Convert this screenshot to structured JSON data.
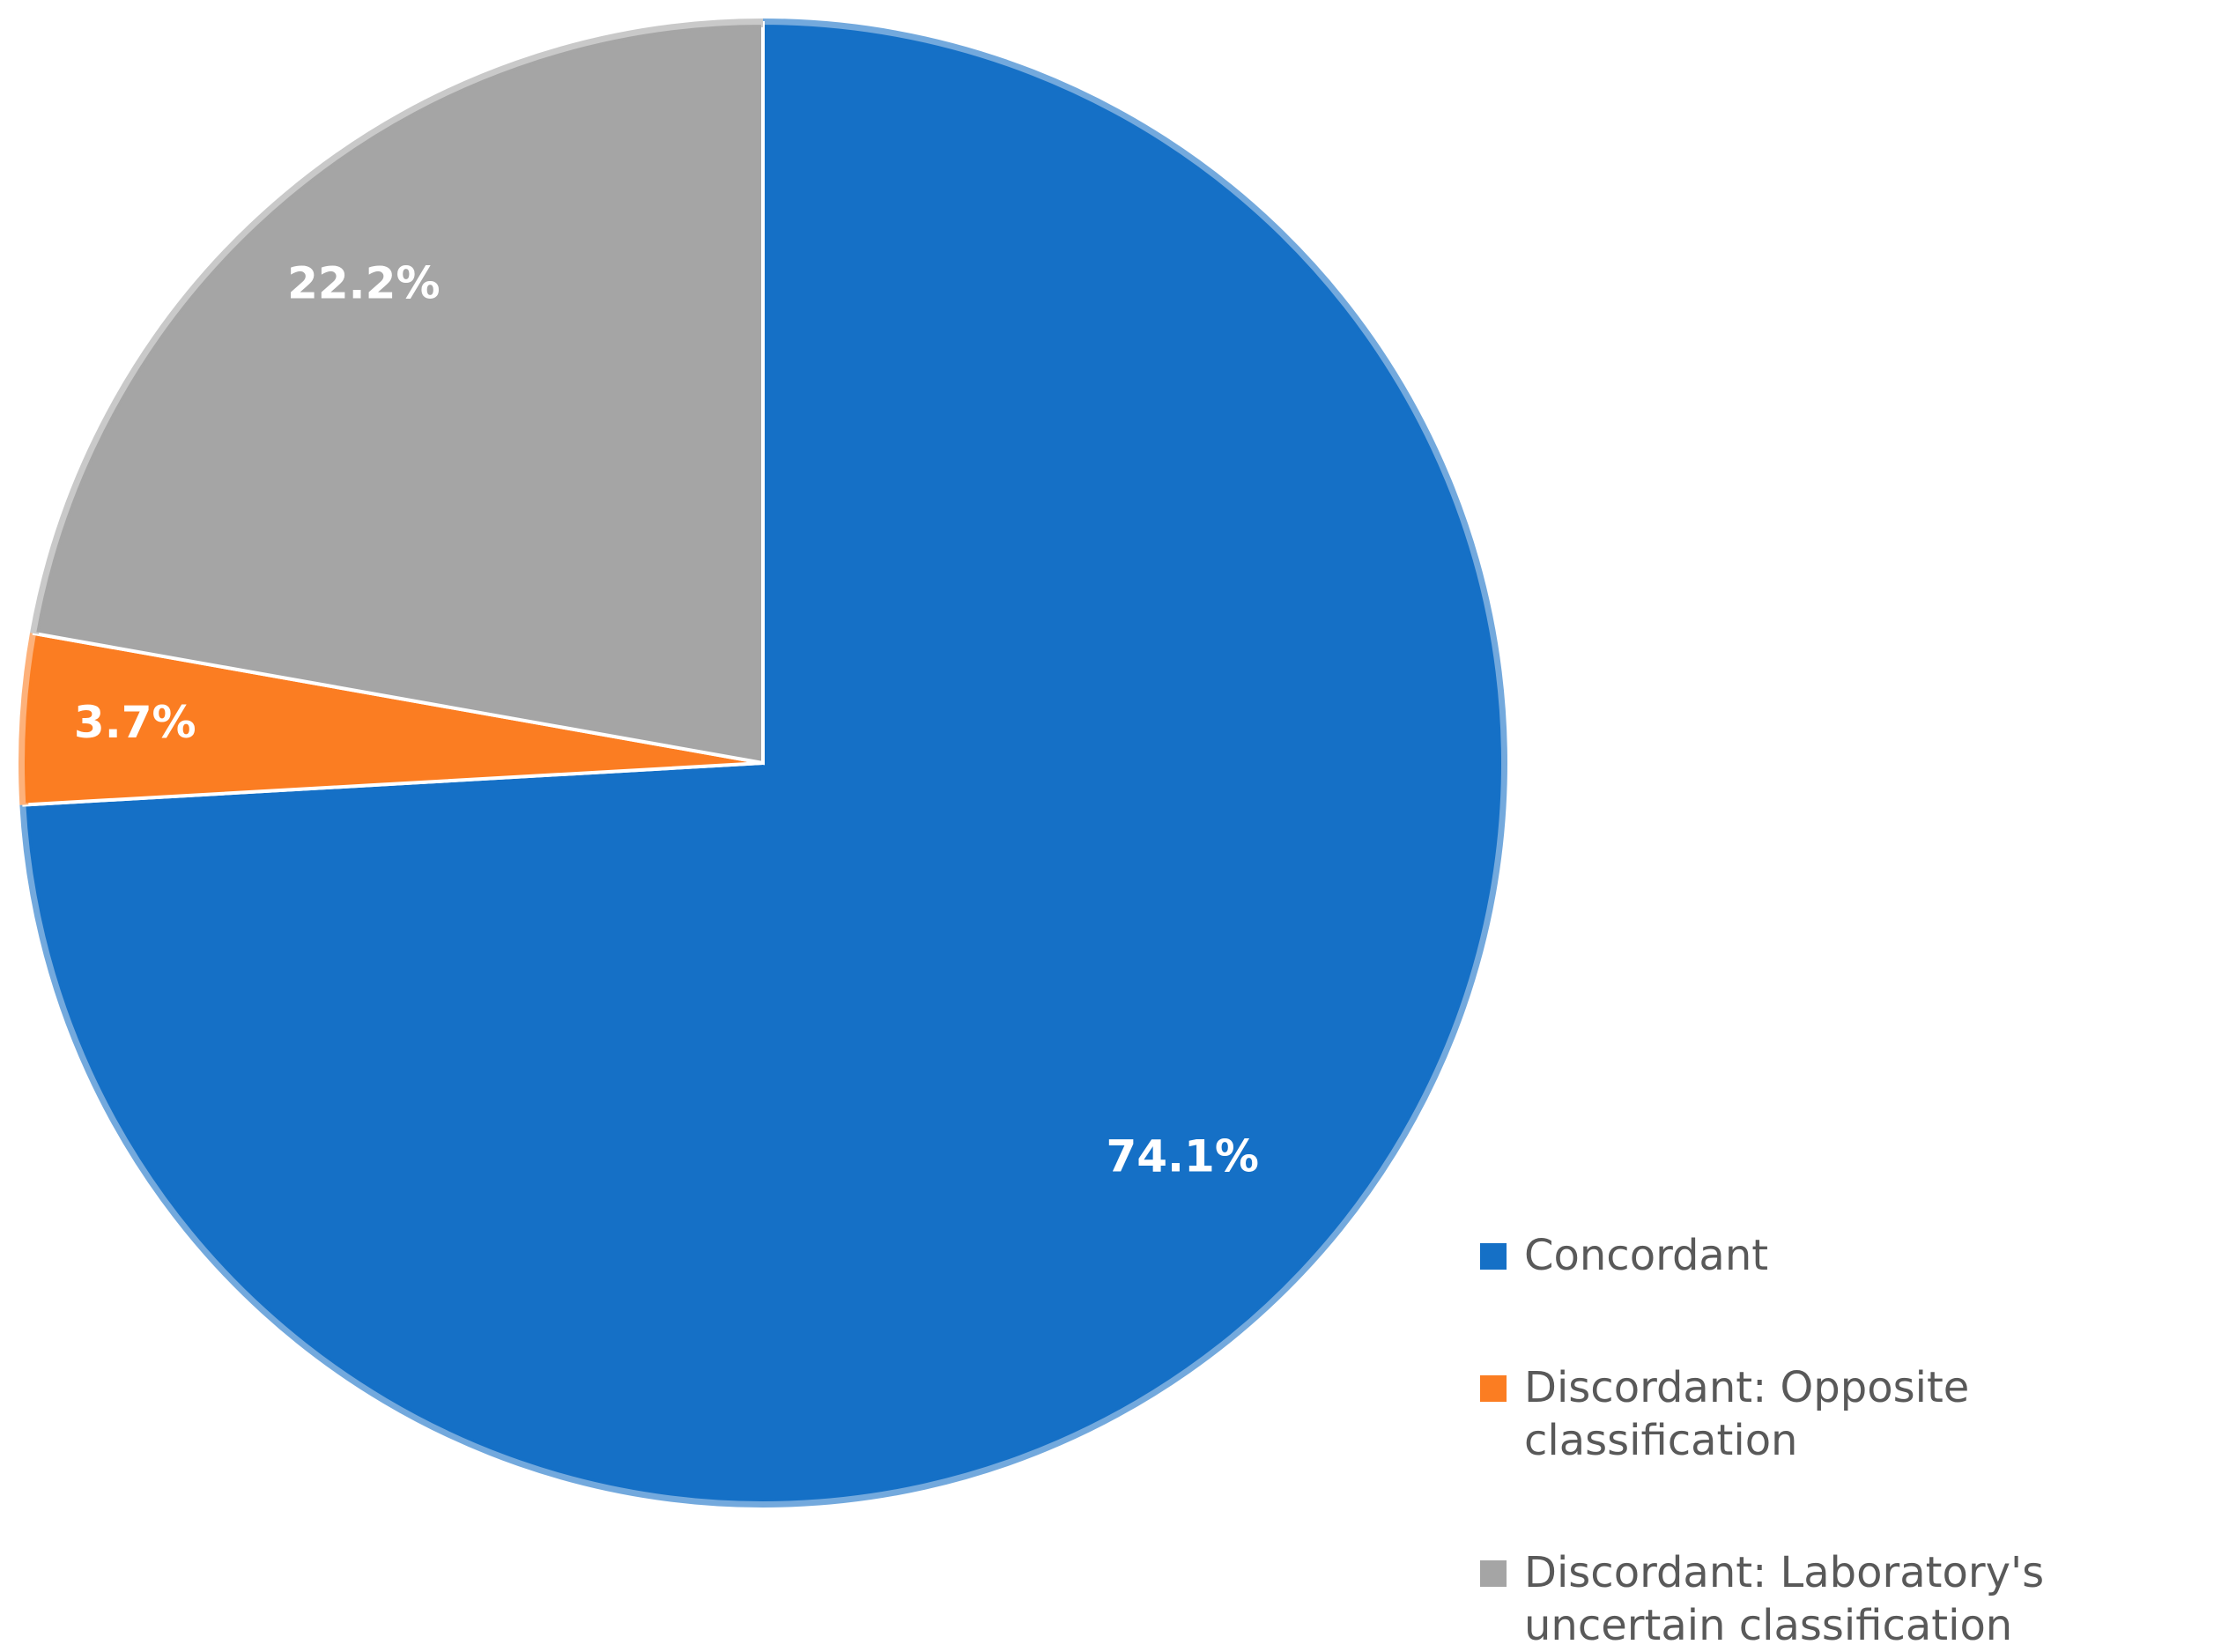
{
  "chart_data": {
    "type": "pie",
    "title": "",
    "start_angle_deg": 0,
    "direction": "clockwise",
    "slices": [
      {
        "name": "Concordant",
        "value": 74.1,
        "label": "74.1%",
        "color": "#1570C6"
      },
      {
        "name": "Discordant: Opposite classification",
        "value": 3.7,
        "label": "3.7%",
        "color": "#FB7D22"
      },
      {
        "name": "Discordant: Laboratory's uncertain classification",
        "value": 22.2,
        "label": "22.2%",
        "color": "#A5A5A5"
      }
    ],
    "legend": {
      "position": "bottom-right",
      "entries": [
        "Concordant",
        "Discordant: Opposite classification",
        "Discordant: Laboratory's uncertain classification"
      ]
    }
  }
}
